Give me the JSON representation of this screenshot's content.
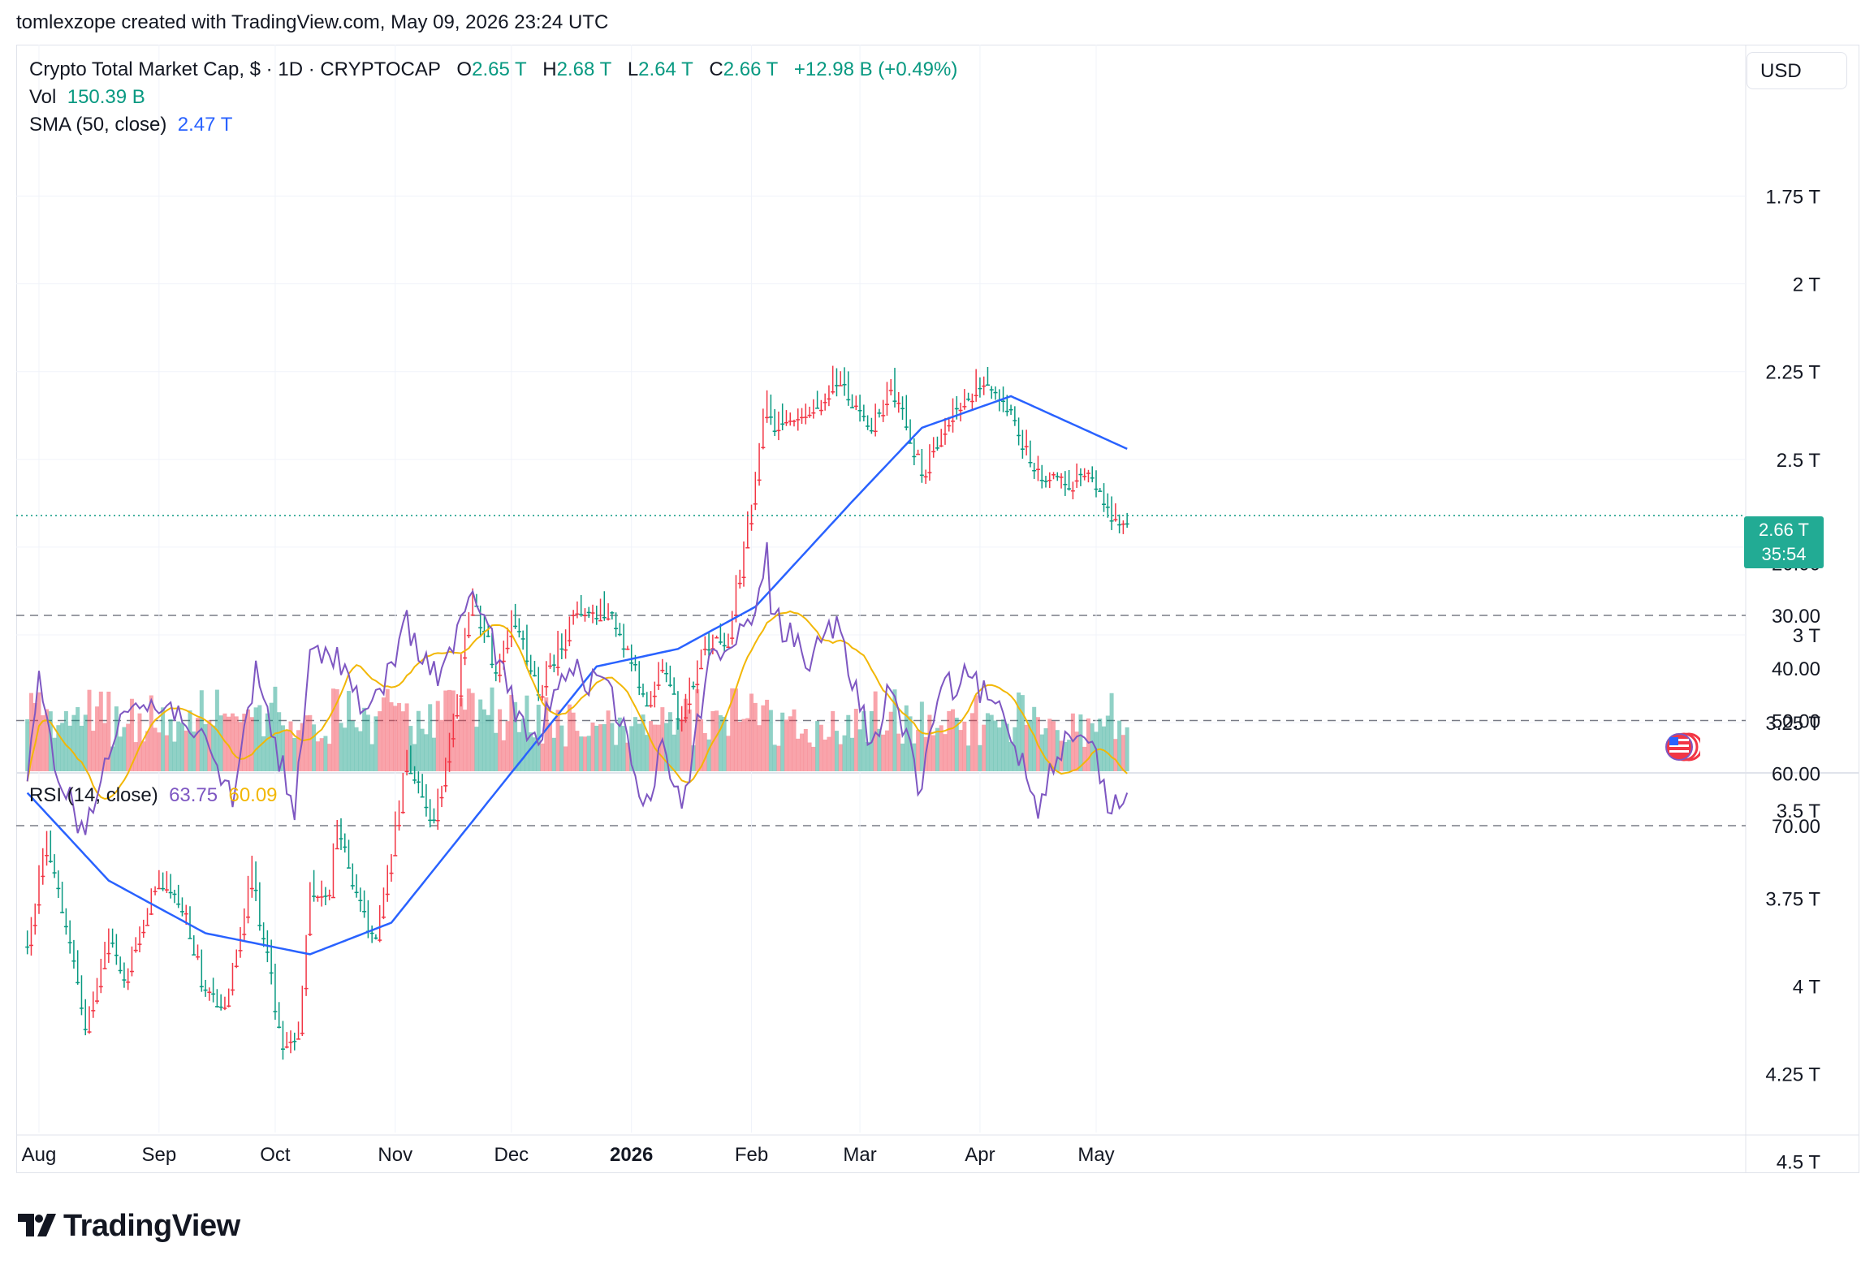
{
  "header": {
    "credit": "tomlexzope created with TradingView.com, May 09, 2026 23:24 UTC"
  },
  "legend": {
    "symbol": "Crypto Total Market Cap, $ · 1D · CRYPTOCAP",
    "o_label": "O",
    "o_value": "2.65 T",
    "h_label": "H",
    "h_value": "2.68 T",
    "l_label": "L",
    "l_value": "2.64 T",
    "c_label": "C",
    "c_value": "2.66 T",
    "change": "+12.98 B (+0.49%)",
    "vol_label": "Vol",
    "vol_value": "150.39 B",
    "sma_label": "SMA (50, close)",
    "sma_value": "2.47 T",
    "rsi_label": "RSI (14, close)",
    "rsi_value": "63.75",
    "rsi_ma_value": "60.09"
  },
  "currency_button": "USD",
  "last_price": {
    "value": "2.66 T",
    "countdown": "35:54"
  },
  "price_axis_labels": [
    "4.5 T",
    "4.25 T",
    "4 T",
    "3.75 T",
    "3.5 T",
    "3.25 T",
    "3 T",
    "2.75 T",
    "2.5 T",
    "2.25 T",
    "2 T",
    "1.75 T"
  ],
  "rsi_axis_labels": [
    "70.00",
    "60.00",
    "50.00",
    "40.00",
    "30.00",
    "20.00"
  ],
  "time_labels": [
    "Aug",
    "Sep",
    "Oct",
    "Nov",
    "Dec",
    "2026",
    "Feb",
    "Mar",
    "Apr",
    "May"
  ],
  "brand": "TradingView",
  "colors": {
    "up": "#089981",
    "down": "#f23645",
    "sma": "#2962ff",
    "rsi": "#7e57c2",
    "rsi_ma": "#f2b706",
    "rsi_band": "#7e57c2",
    "last_price_bg": "#22ab94"
  },
  "chart_data": {
    "type": "candlestick",
    "timeframe": "1D",
    "symbol": "CRYPTOCAP:TOTAL",
    "price_range_T": [
      1.7,
      4.5
    ],
    "rsi_range": [
      15,
      75
    ],
    "rsi_levels": {
      "upper": 70,
      "middle": 50,
      "lower": 30
    },
    "price_waypoints": [
      {
        "date": "2025-07-29",
        "close_T": 3.88
      },
      {
        "date": "2025-08-03",
        "close_T": 3.58
      },
      {
        "date": "2025-08-08",
        "close_T": 3.82
      },
      {
        "date": "2025-08-13",
        "close_T": 4.12
      },
      {
        "date": "2025-08-19",
        "close_T": 3.86
      },
      {
        "date": "2025-08-23",
        "close_T": 3.98
      },
      {
        "date": "2025-09-01",
        "close_T": 3.68
      },
      {
        "date": "2025-09-08",
        "close_T": 3.8
      },
      {
        "date": "2025-09-13",
        "close_T": 4.02
      },
      {
        "date": "2025-09-18",
        "close_T": 4.05
      },
      {
        "date": "2025-09-25",
        "close_T": 3.68
      },
      {
        "date": "2025-10-03",
        "close_T": 4.17
      },
      {
        "date": "2025-10-07",
        "close_T": 4.12
      },
      {
        "date": "2025-10-10",
        "close_T": 3.72
      },
      {
        "date": "2025-10-15",
        "close_T": 3.75
      },
      {
        "date": "2025-10-17",
        "close_T": 3.52
      },
      {
        "date": "2025-10-21",
        "close_T": 3.7
      },
      {
        "date": "2025-10-27",
        "close_T": 3.88
      },
      {
        "date": "2025-11-04",
        "close_T": 3.35
      },
      {
        "date": "2025-11-11",
        "close_T": 3.55
      },
      {
        "date": "2025-11-17",
        "close_T": 3.15
      },
      {
        "date": "2025-11-21",
        "close_T": 2.88
      },
      {
        "date": "2025-11-27",
        "close_T": 3.1
      },
      {
        "date": "2025-12-01",
        "close_T": 2.93
      },
      {
        "date": "2025-12-08",
        "close_T": 3.15
      },
      {
        "date": "2025-12-18",
        "close_T": 2.93
      },
      {
        "date": "2025-12-26",
        "close_T": 2.93
      },
      {
        "date": "2026-01-05",
        "close_T": 3.18
      },
      {
        "date": "2026-01-09",
        "close_T": 3.08
      },
      {
        "date": "2026-01-14",
        "close_T": 3.25
      },
      {
        "date": "2026-01-19",
        "close_T": 3.04
      },
      {
        "date": "2026-01-26",
        "close_T": 3.0
      },
      {
        "date": "2026-01-31",
        "close_T": 2.68
      },
      {
        "date": "2026-02-05",
        "close_T": 2.32
      },
      {
        "date": "2026-02-06",
        "close_T": 2.4
      },
      {
        "date": "2026-02-14",
        "close_T": 2.38
      },
      {
        "date": "2026-02-23",
        "close_T": 2.27
      },
      {
        "date": "2026-03-04",
        "close_T": 2.42
      },
      {
        "date": "2026-03-09",
        "close_T": 2.28
      },
      {
        "date": "2026-03-17",
        "close_T": 2.53
      },
      {
        "date": "2026-03-25",
        "close_T": 2.36
      },
      {
        "date": "2026-04-01",
        "close_T": 2.28
      },
      {
        "date": "2026-04-08",
        "close_T": 2.36
      },
      {
        "date": "2026-04-16",
        "close_T": 2.53
      },
      {
        "date": "2026-04-25",
        "close_T": 2.57
      },
      {
        "date": "2026-04-29",
        "close_T": 2.52
      },
      {
        "date": "2026-05-05",
        "close_T": 2.66
      },
      {
        "date": "2026-05-09",
        "close_T": 2.66
      }
    ],
    "sma50_waypoints": [
      {
        "date": "2025-07-29",
        "value_T": 3.45
      },
      {
        "date": "2025-08-19",
        "value_T": 3.7
      },
      {
        "date": "2025-09-13",
        "value_T": 3.85
      },
      {
        "date": "2025-10-10",
        "value_T": 3.91
      },
      {
        "date": "2025-10-31",
        "value_T": 3.82
      },
      {
        "date": "2025-11-29",
        "value_T": 3.42
      },
      {
        "date": "2025-12-23",
        "value_T": 3.09
      },
      {
        "date": "2026-01-13",
        "value_T": 3.04
      },
      {
        "date": "2026-02-02",
        "value_T": 2.92
      },
      {
        "date": "2026-02-27",
        "value_T": 2.62
      },
      {
        "date": "2026-03-17",
        "value_T": 2.41
      },
      {
        "date": "2026-04-09",
        "value_T": 2.32
      },
      {
        "date": "2026-05-09",
        "value_T": 2.47
      }
    ],
    "rsi_waypoints": [
      {
        "date": "2025-07-29",
        "rsi": 63
      },
      {
        "date": "2025-08-01",
        "rsi": 43
      },
      {
        "date": "2025-08-05",
        "rsi": 58
      },
      {
        "date": "2025-08-13",
        "rsi": 72
      },
      {
        "date": "2025-08-22",
        "rsi": 47
      },
      {
        "date": "2025-09-07",
        "rsi": 48
      },
      {
        "date": "2025-09-20",
        "rsi": 65
      },
      {
        "date": "2025-09-26",
        "rsi": 40
      },
      {
        "date": "2025-10-06",
        "rsi": 68
      },
      {
        "date": "2025-10-10",
        "rsi": 38
      },
      {
        "date": "2025-10-17",
        "rsi": 37
      },
      {
        "date": "2025-10-25",
        "rsi": 50
      },
      {
        "date": "2025-11-04",
        "rsi": 32
      },
      {
        "date": "2025-11-12",
        "rsi": 42
      },
      {
        "date": "2025-11-22",
        "rsi": 26
      },
      {
        "date": "2025-12-02",
        "rsi": 48
      },
      {
        "date": "2025-12-07",
        "rsi": 55
      },
      {
        "date": "2025-12-15",
        "rsi": 40
      },
      {
        "date": "2025-12-27",
        "rsi": 45
      },
      {
        "date": "2026-01-05",
        "rsi": 67
      },
      {
        "date": "2026-01-09",
        "rsi": 52
      },
      {
        "date": "2026-01-14",
        "rsi": 68
      },
      {
        "date": "2026-01-21",
        "rsi": 38
      },
      {
        "date": "2026-01-31",
        "rsi": 33
      },
      {
        "date": "2026-02-05",
        "rsi": 17
      },
      {
        "date": "2026-02-06",
        "rsi": 30
      },
      {
        "date": "2026-02-16",
        "rsi": 38
      },
      {
        "date": "2026-02-23",
        "rsi": 32
      },
      {
        "date": "2026-03-04",
        "rsi": 55
      },
      {
        "date": "2026-03-09",
        "rsi": 43
      },
      {
        "date": "2026-03-17",
        "rsi": 64
      },
      {
        "date": "2026-03-21",
        "rsi": 45
      },
      {
        "date": "2026-03-29",
        "rsi": 42
      },
      {
        "date": "2026-04-08",
        "rsi": 50
      },
      {
        "date": "2026-04-16",
        "rsi": 66
      },
      {
        "date": "2026-04-21",
        "rsi": 55
      },
      {
        "date": "2026-04-29",
        "rsi": 53
      },
      {
        "date": "2026-05-05",
        "rsi": 67
      },
      {
        "date": "2026-05-09",
        "rsi": 63.75
      }
    ],
    "rsi_ma_last": 60.09,
    "volume_last_B": 150.39
  }
}
